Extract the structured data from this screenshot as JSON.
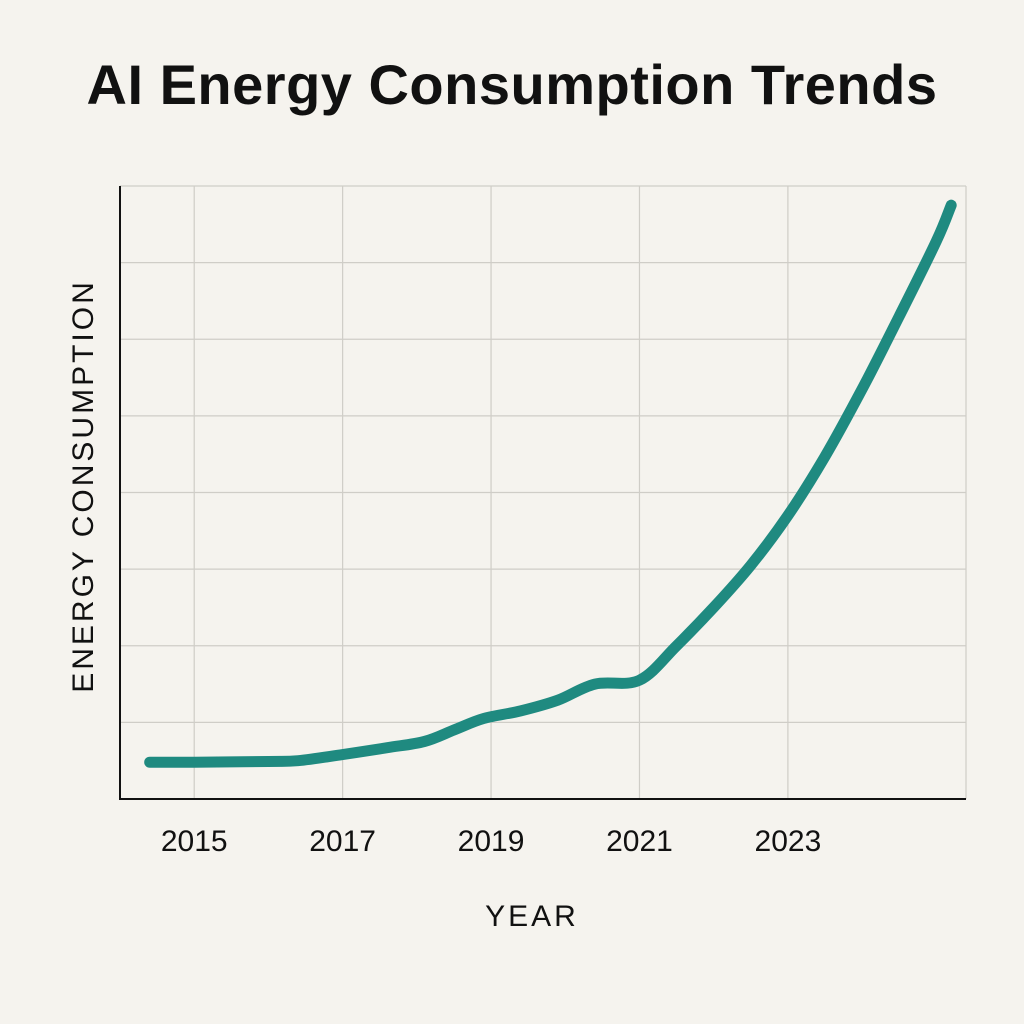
{
  "chart_data": {
    "type": "line",
    "title": "AI Energy Consumption Trends",
    "xlabel": "YEAR",
    "ylabel": "ENERGY CONSUMPTION",
    "x_ticks": [
      "2015",
      "2017",
      "2019",
      "2021",
      "2023"
    ],
    "xlim": [
      2014.0,
      2025.4
    ],
    "ylim": [
      0,
      8
    ],
    "y_grid_count": 7,
    "grid": true,
    "y_tick_labels_shown": false,
    "series": [
      {
        "name": "AI Energy Consumption",
        "color": "#1f8a80",
        "x": [
          2014.4,
          2015.0,
          2016.0,
          2016.4,
          2017.0,
          2017.6,
          2018.1,
          2018.5,
          2018.9,
          2019.4,
          2019.9,
          2020.4,
          2021.0,
          2021.5,
          2022.0,
          2022.5,
          2023.0,
          2023.5,
          2024.0,
          2024.5,
          2025.0,
          2025.2
        ],
        "values": [
          0.48,
          0.48,
          0.49,
          0.5,
          0.58,
          0.67,
          0.75,
          0.9,
          1.05,
          1.15,
          1.29,
          1.5,
          1.55,
          2.0,
          2.5,
          3.05,
          3.7,
          4.47,
          5.35,
          6.3,
          7.28,
          7.75
        ]
      }
    ]
  }
}
